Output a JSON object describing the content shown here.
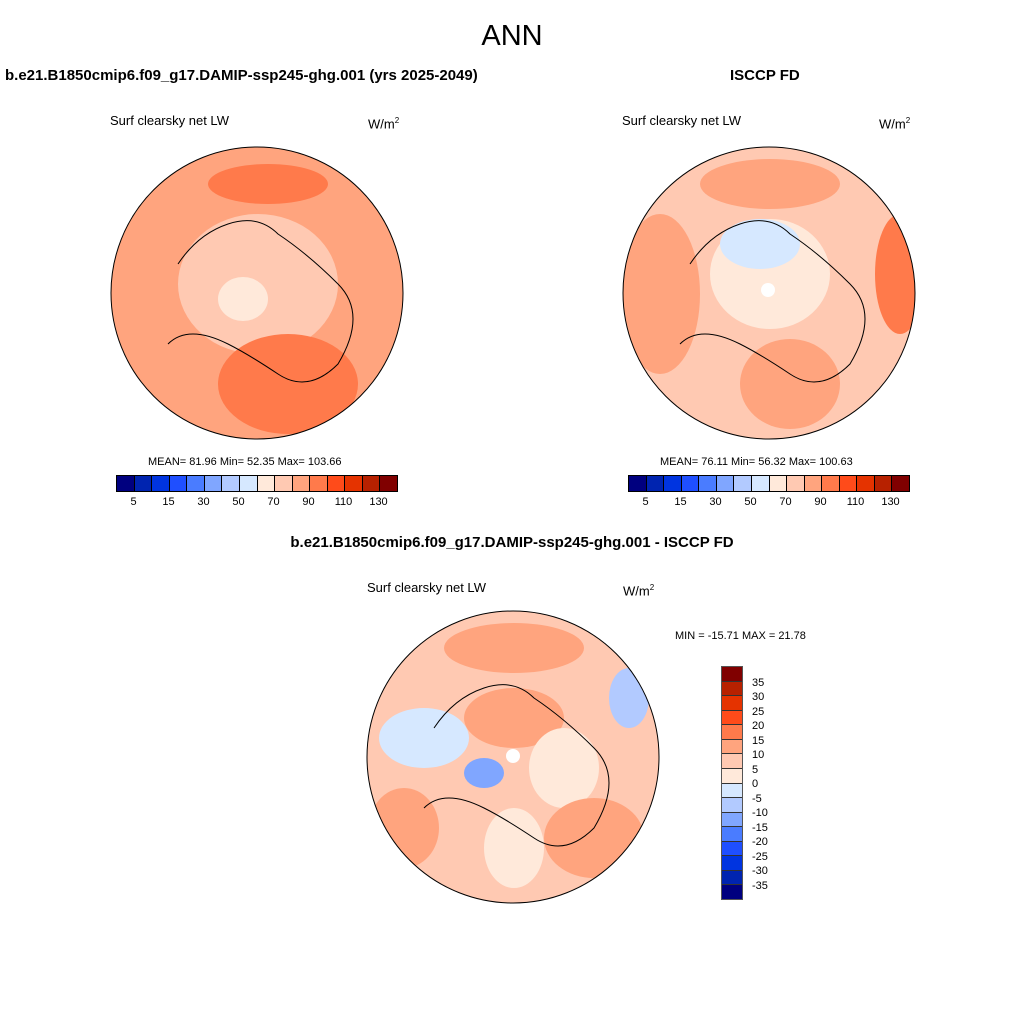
{
  "title": "ANN",
  "panels": [
    {
      "case_title": "b.e21.B1850cmip6.f09_g17.DAMIP-ssp245-ghg.001 (yrs 2025-2049)",
      "variable": "Surf clearsky net LW",
      "units_base": "W/m",
      "units_exp": "2",
      "stats": "MEAN=  81.96  Min=  52.35  Max= 103.66"
    },
    {
      "case_title": "ISCCP FD",
      "variable": "Surf clearsky net LW",
      "units_base": "W/m",
      "units_exp": "2",
      "stats": "MEAN=  76.11  Min=  56.32  Max= 100.63"
    },
    {
      "case_title": "b.e21.B1850cmip6.f09_g17.DAMIP-ssp245-ghg.001 - ISCCP FD",
      "variable": "Surf clearsky net LW",
      "units_base": "W/m",
      "units_exp": "2",
      "stats": "MIN = -15.71 MAX =  21.78"
    }
  ],
  "colorbar_abs": {
    "colors": [
      "#00007f",
      "#0024b0",
      "#0034e0",
      "#1f4fff",
      "#4a7cff",
      "#80a6ff",
      "#b2caff",
      "#d6e8ff",
      "#ffe9da",
      "#ffc9b2",
      "#ffa47e",
      "#ff7a4b",
      "#ff4b1a",
      "#e53300",
      "#b72100",
      "#800000"
    ],
    "tick_labels": [
      "5",
      "15",
      "30",
      "50",
      "70",
      "90",
      "110",
      "130"
    ]
  },
  "colorbar_diff": {
    "colors": [
      "#800000",
      "#b72100",
      "#e53300",
      "#ff4b1a",
      "#ff7a4b",
      "#ffa47e",
      "#ffc9b2",
      "#ffe9da",
      "#d6e8ff",
      "#b2caff",
      "#80a6ff",
      "#4a7cff",
      "#1f4fff",
      "#0034e0",
      "#0024b0",
      "#00007f"
    ],
    "tick_labels": [
      "35",
      "30",
      "25",
      "20",
      "15",
      "10",
      "5",
      "0",
      "-5",
      "-10",
      "-15",
      "-20",
      "-25",
      "-30",
      "-35"
    ]
  }
}
